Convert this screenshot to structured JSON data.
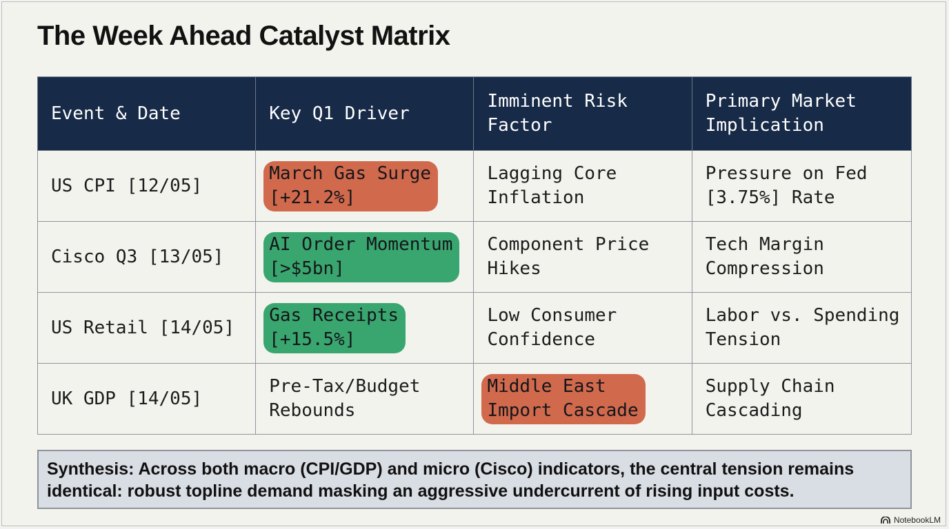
{
  "title": "The Week Ahead Catalyst Matrix",
  "table": {
    "headers": [
      [
        "Event & Date"
      ],
      [
        "Key Q1 Driver"
      ],
      [
        "Imminent Risk",
        "Factor"
      ],
      [
        "Primary Market",
        "Implication"
      ]
    ],
    "rows": [
      {
        "event": [
          "US CPI [12/05]"
        ],
        "driver": {
          "lines": [
            "March Gas Surge",
            "[+21.2%]"
          ],
          "highlight": "red"
        },
        "risk": {
          "lines": [
            "Lagging Core",
            "Inflation"
          ],
          "highlight": ""
        },
        "implication": [
          "Pressure on Fed",
          "[3.75%] Rate"
        ]
      },
      {
        "event": [
          "Cisco Q3 [13/05]"
        ],
        "driver": {
          "lines": [
            "AI Order Momentum",
            "[>$5bn]"
          ],
          "highlight": "green"
        },
        "risk": {
          "lines": [
            "Component Price",
            "Hikes"
          ],
          "highlight": ""
        },
        "implication": [
          "Tech Margin",
          "Compression"
        ]
      },
      {
        "event": [
          "US Retail [14/05]"
        ],
        "driver": {
          "lines": [
            "Gas Receipts",
            "[+15.5%]"
          ],
          "highlight": "green"
        },
        "risk": {
          "lines": [
            "Low Consumer",
            "Confidence"
          ],
          "highlight": ""
        },
        "implication": [
          "Labor vs. Spending",
          "Tension"
        ]
      },
      {
        "event": [
          "UK GDP [14/05]"
        ],
        "driver": {
          "lines": [
            "Pre-Tax/Budget",
            "Rebounds"
          ],
          "highlight": ""
        },
        "risk": {
          "lines": [
            "Middle East",
            "Import Cascade"
          ],
          "highlight": "red"
        },
        "implication": [
          "Supply Chain",
          "Cascading"
        ]
      }
    ]
  },
  "synthesis": "Synthesis: Across both macro (CPI/GDP) and micro (Cisco) indicators, the central tension remains\nidentical: robust topline demand masking an aggressive undercurrent of rising input costs.",
  "brand": {
    "label": "NotebookLM",
    "icon": "notebooklm-logo-icon"
  },
  "colors": {
    "header_bg": "#172a47",
    "highlight_red": "#d1694d",
    "highlight_green": "#3aa66f",
    "synthesis_bg": "#d9dde4",
    "page_bg": "#f3f3ee"
  }
}
